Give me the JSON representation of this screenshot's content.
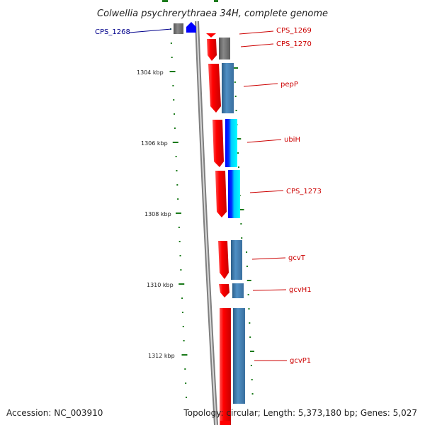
{
  "title": "Colwellia psychrerythraea 34H, complete genome",
  "footer": {
    "accession": "Accession: NC_003910",
    "summary": "Topology: circular; Length: 5,373,180 bp; Genes: 5,027"
  },
  "scale_labels": [
    "1304 kbp",
    "1306 kbp",
    "1308 kbp",
    "1310 kbp",
    "1312 kbp"
  ],
  "genes": [
    {
      "name": "CPS_1268",
      "color": "#00008b",
      "strand": "minus"
    },
    {
      "name": "CPS_1269",
      "color": "#cc0000",
      "strand": "plus"
    },
    {
      "name": "CPS_1270",
      "color": "#cc0000",
      "strand": "plus"
    },
    {
      "name": "pepP",
      "color": "#cc0000",
      "strand": "plus"
    },
    {
      "name": "ubiH",
      "color": "#cc0000",
      "strand": "plus"
    },
    {
      "name": "CPS_1273",
      "color": "#cc0000",
      "strand": "plus"
    },
    {
      "name": "gcvT",
      "color": "#cc0000",
      "strand": "plus"
    },
    {
      "name": "gcvH1",
      "color": "#cc0000",
      "strand": "plus"
    },
    {
      "name": "gcvP1",
      "color": "#cc0000",
      "strand": "plus"
    }
  ],
  "colors": {
    "backbone": "#808080",
    "cds": "#ff0000",
    "feature_gray": "#666666",
    "feature_blue": "#4682b4",
    "feature_cyan": "#00e5ff",
    "minus_strand": "#0000ff",
    "ticks": "#1a7a1a"
  }
}
